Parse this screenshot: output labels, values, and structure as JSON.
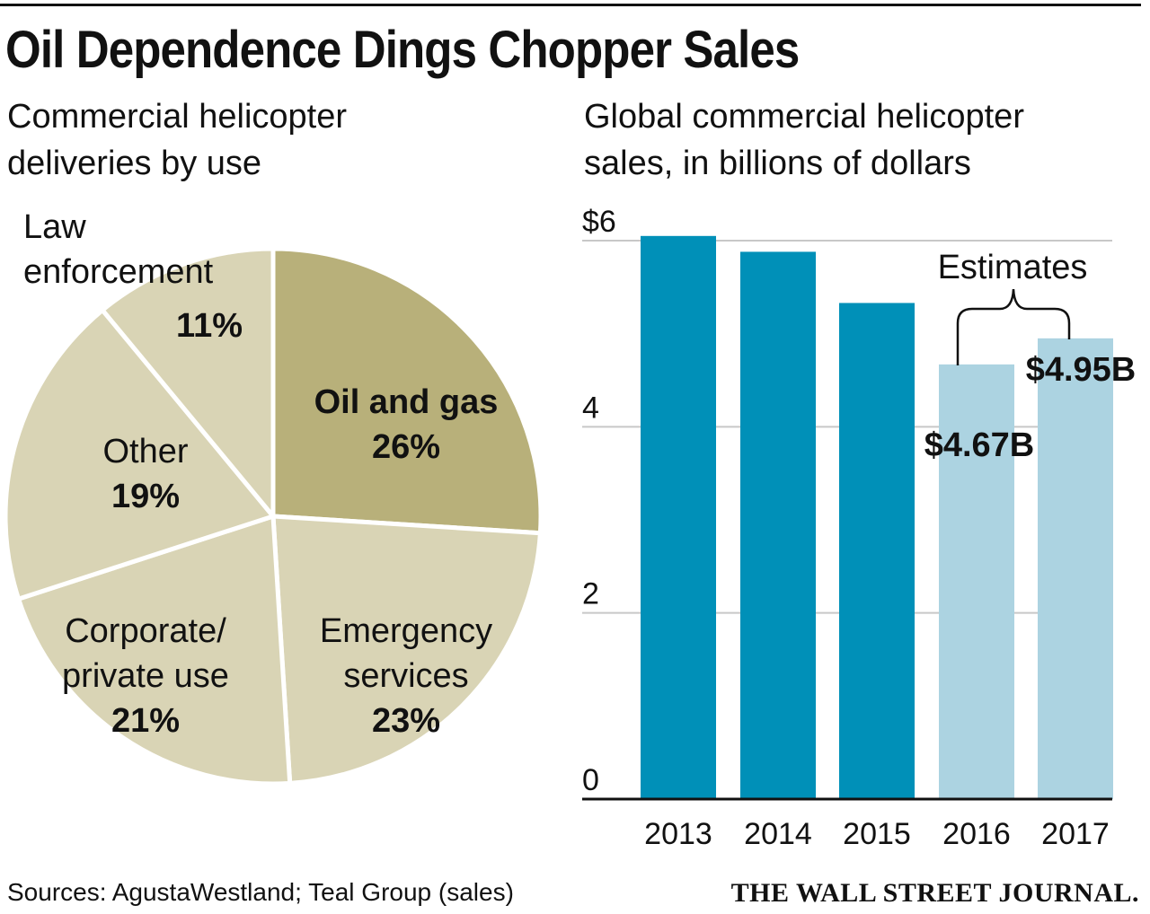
{
  "header": {
    "title": "Oil Dependence Dings Chopper Sales"
  },
  "footer": {
    "source": "Sources: AgustaWestland; Teal Group (sales)",
    "publisher": "THE WALL STREET JOURNAL."
  },
  "colors": {
    "pie_highlight": "#b8b07a",
    "pie_base": "#d9d4b5",
    "bar_actual": "#0090b8",
    "bar_estimate": "#acd3e1",
    "gridline": "#c8c8c8"
  },
  "chart_data": [
    {
      "type": "pie",
      "title": "Commercial helicopter deliveries by use",
      "title_lines": [
        "Commercial helicopter",
        "deliveries by use"
      ],
      "slices": [
        {
          "label": "Oil and gas",
          "label_lines": [
            "Oil and gas"
          ],
          "value": 26,
          "value_label": "26%",
          "highlight": true
        },
        {
          "label": "Emergency services",
          "label_lines": [
            "Emergency",
            "services"
          ],
          "value": 23,
          "value_label": "23%",
          "highlight": false
        },
        {
          "label": "Corporate/private use",
          "label_lines": [
            "Corporate/",
            "private use"
          ],
          "value": 21,
          "value_label": "21%",
          "highlight": false
        },
        {
          "label": "Other",
          "label_lines": [
            "Other"
          ],
          "value": 19,
          "value_label": "19%",
          "highlight": false
        },
        {
          "label": "Law enforcement",
          "label_lines": [
            "Law",
            "enforcement"
          ],
          "value": 11,
          "value_label": "11%",
          "highlight": false
        }
      ]
    },
    {
      "type": "bar",
      "title": "Global commercial helicopter sales, in billions of dollars",
      "title_lines": [
        "Global commercial helicopter",
        "sales, in billions of dollars"
      ],
      "categories": [
        "2013",
        "2014",
        "2015",
        "2016",
        "2017"
      ],
      "values": [
        6.05,
        5.88,
        5.33,
        4.67,
        4.95
      ],
      "estimate": [
        false,
        false,
        false,
        true,
        true
      ],
      "value_labels": [
        "",
        "",
        "",
        "$4.67B",
        "$4.95B"
      ],
      "ylim": [
        0,
        6
      ],
      "yticks": [
        0,
        2,
        4,
        6
      ],
      "ytick_labels": [
        "0",
        "2",
        "4",
        "$6"
      ],
      "annotation": "Estimates"
    }
  ]
}
